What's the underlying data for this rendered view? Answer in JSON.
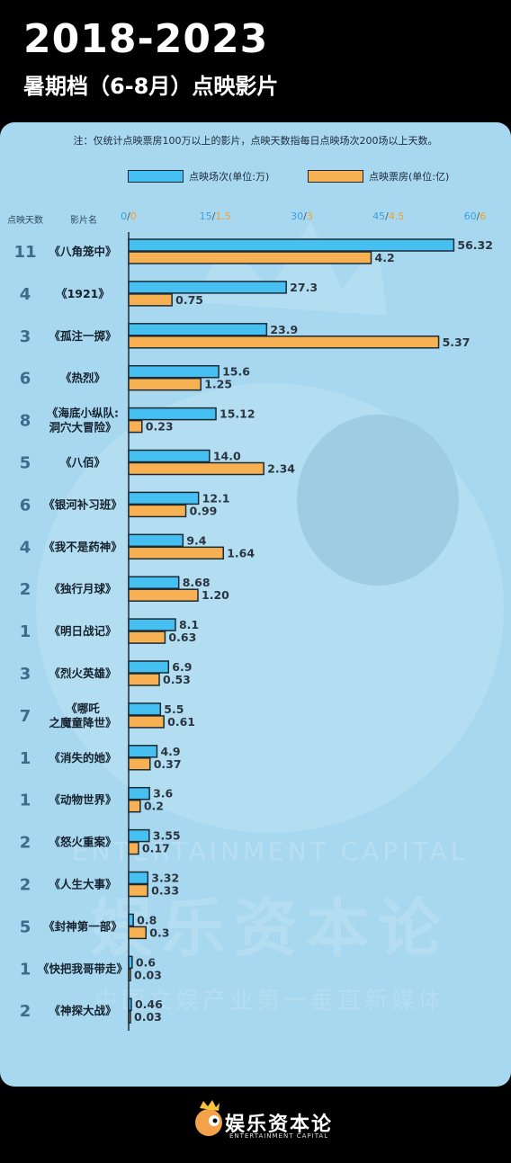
{
  "header": {
    "title": "2018-2023",
    "subtitle": "暑期档（6-8月）点映影片"
  },
  "note": "注：仅统计点映票房100万以上的影片，点映天数指每日点映场次200场以上天数。",
  "columns": {
    "days": "点映天数",
    "film": "影片名"
  },
  "footer": {
    "brand": "娱乐资本论",
    "brand_en": "ENTERTAINMENT CAPITAL"
  },
  "watermark": {
    "line1": "ENTERTAINMENT CAPITAL",
    "line2": "娱乐资本论",
    "line3": "中国文娱产业第一垂直新媒体"
  },
  "colors": {
    "screenings": "#45c0f0",
    "box_office": "#f7b152",
    "outline": "#1c2a36",
    "panel": "#a8d8ef"
  },
  "chart_data": {
    "type": "bar",
    "orientation": "horizontal",
    "axes": {
      "screenings": {
        "ticks": [
          "0",
          "15",
          "30",
          "45",
          "60"
        ],
        "range": [
          0,
          60
        ],
        "color": "#3aa0d8"
      },
      "box_office": {
        "ticks": [
          "0",
          "1.5",
          "3",
          "4.5",
          "6"
        ],
        "range": [
          0,
          6
        ],
        "color": "#f0a030"
      }
    },
    "series": [
      {
        "name": "点映场次(单位:万)",
        "key": "screenings"
      },
      {
        "name": "点映票房(单位:亿)",
        "key": "box_office"
      }
    ],
    "rows": [
      {
        "days": "11",
        "film": [
          "《八角笼中》"
        ],
        "screenings": 56.32,
        "screenings_label": "56.32",
        "box_office": 4.2,
        "box_office_label": "4.2"
      },
      {
        "days": "4",
        "film": [
          "《1921》"
        ],
        "screenings": 27.3,
        "screenings_label": "27.3",
        "box_office": 0.75,
        "box_office_label": "0.75"
      },
      {
        "days": "3",
        "film": [
          "《孤注一掷》"
        ],
        "screenings": 23.9,
        "screenings_label": "23.9",
        "box_office": 5.37,
        "box_office_label": "5.37"
      },
      {
        "days": "6",
        "film": [
          "《热烈》"
        ],
        "screenings": 15.6,
        "screenings_label": "15.6",
        "box_office": 1.25,
        "box_office_label": "1.25"
      },
      {
        "days": "8",
        "film": [
          "《海底小纵队:",
          "洞穴大冒险》"
        ],
        "screenings": 15.12,
        "screenings_label": "15.12",
        "box_office": 0.23,
        "box_office_label": "0.23"
      },
      {
        "days": "5",
        "film": [
          "《八佰》"
        ],
        "screenings": 14.0,
        "screenings_label": "14.0",
        "box_office": 2.34,
        "box_office_label": "2.34"
      },
      {
        "days": "6",
        "film": [
          "《银河补习班》"
        ],
        "screenings": 12.1,
        "screenings_label": "12.1",
        "box_office": 0.99,
        "box_office_label": "0.99"
      },
      {
        "days": "4",
        "film": [
          "《我不是药神》"
        ],
        "screenings": 9.4,
        "screenings_label": "9.4",
        "box_office": 1.64,
        "box_office_label": "1.64"
      },
      {
        "days": "2",
        "film": [
          "《独行月球》"
        ],
        "screenings": 8.68,
        "screenings_label": "8.68",
        "box_office": 1.2,
        "box_office_label": "1.20"
      },
      {
        "days": "1",
        "film": [
          "《明日战记》"
        ],
        "screenings": 8.1,
        "screenings_label": "8.1",
        "box_office": 0.63,
        "box_office_label": "0.63"
      },
      {
        "days": "3",
        "film": [
          "《烈火英雄》"
        ],
        "screenings": 6.9,
        "screenings_label": "6.9",
        "box_office": 0.53,
        "box_office_label": "0.53"
      },
      {
        "days": "7",
        "film": [
          "《哪吒",
          "之魔童降世》"
        ],
        "screenings": 5.5,
        "screenings_label": "5.5",
        "box_office": 0.61,
        "box_office_label": "0.61"
      },
      {
        "days": "1",
        "film": [
          "《消失的她》"
        ],
        "screenings": 4.9,
        "screenings_label": "4.9",
        "box_office": 0.37,
        "box_office_label": "0.37"
      },
      {
        "days": "1",
        "film": [
          "《动物世界》"
        ],
        "screenings": 3.6,
        "screenings_label": "3.6",
        "box_office": 0.2,
        "box_office_label": "0.2"
      },
      {
        "days": "2",
        "film": [
          "《怒火重案》"
        ],
        "screenings": 3.55,
        "screenings_label": "3.55",
        "box_office": 0.17,
        "box_office_label": "0.17"
      },
      {
        "days": "2",
        "film": [
          "《人生大事》"
        ],
        "screenings": 3.32,
        "screenings_label": "3.32",
        "box_office": 0.33,
        "box_office_label": "0.33"
      },
      {
        "days": "5",
        "film": [
          "《封神第一部》"
        ],
        "screenings": 0.8,
        "screenings_label": "0.8",
        "box_office": 0.3,
        "box_office_label": "0.3"
      },
      {
        "days": "1",
        "film": [
          "《快把我哥带走》"
        ],
        "screenings": 0.6,
        "screenings_label": "0.6",
        "box_office": 0.03,
        "box_office_label": "0.03"
      },
      {
        "days": "2",
        "film": [
          "《神探大战》"
        ],
        "screenings": 0.46,
        "screenings_label": "0.46",
        "box_office": 0.03,
        "box_office_label": "0.03"
      }
    ]
  }
}
